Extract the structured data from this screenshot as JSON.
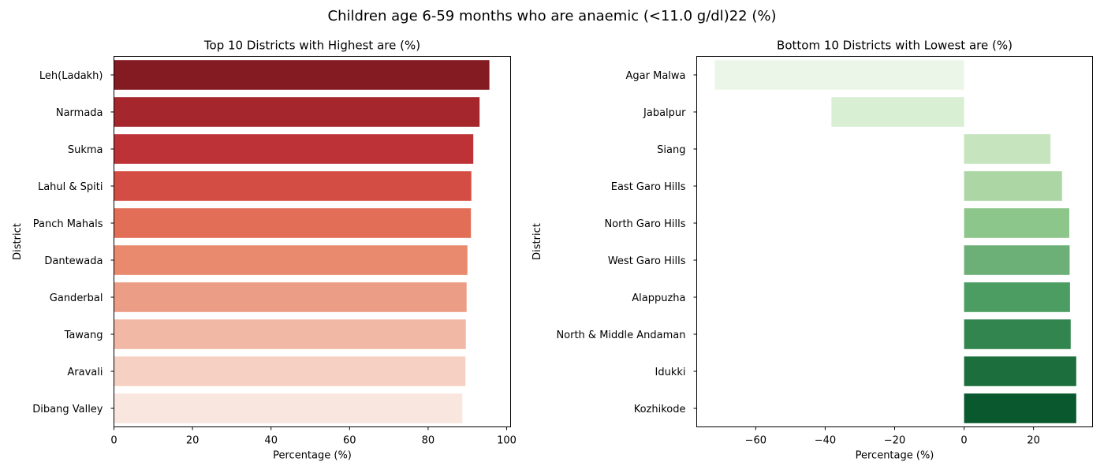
{
  "figure": {
    "suptitle": "Children age 6-59 months who are anaemic (<11.0 g/dl)22 (%)"
  },
  "chart_data": [
    {
      "type": "bar",
      "orientation": "horizontal",
      "title": "Top 10 Districts with Highest are (%)",
      "xlabel": "Percentage (%)",
      "ylabel": "District",
      "categories": [
        "Leh(Ladakh)",
        "Narmada",
        "Sukma",
        "Lahul & Spiti",
        "Panch Mahals",
        "Dantewada",
        "Ganderbal",
        "Tawang",
        "Aravali",
        "Dibang Valley"
      ],
      "values": [
        95.6,
        93.1,
        91.5,
        91.0,
        90.9,
        90.0,
        89.8,
        89.6,
        89.5,
        88.7
      ],
      "xlim": [
        0,
        101
      ],
      "xticks": [
        0,
        20,
        40,
        60,
        80,
        100
      ],
      "colors": [
        "#841a22",
        "#a5262d",
        "#bc3236",
        "#d44d44",
        "#e36e57",
        "#e9896d",
        "#ec9d86",
        "#f1b9a5",
        "#f6d1c3",
        "#f9e6de"
      ],
      "grid": false,
      "legend": "none"
    },
    {
      "type": "bar",
      "orientation": "horizontal",
      "title": "Bottom 10 Districts with Lowest are (%)",
      "xlabel": "Percentage (%)",
      "ylabel": "District",
      "categories": [
        "Agar Malwa",
        "Jabalpur",
        "Siang",
        "East Garo Hills",
        "North Garo Hills",
        "West Garo Hills",
        "Alappuzha",
        "North & Middle Andaman",
        "Idukki",
        "Kozhikode"
      ],
      "values": [
        -71.8,
        -38.2,
        24.9,
        28.2,
        30.3,
        30.4,
        30.5,
        30.7,
        32.3,
        32.3
      ],
      "xlim": [
        -77,
        37
      ],
      "xticks": [
        -60,
        -40,
        -20,
        0,
        20
      ],
      "xtick_labels": [
        "−60",
        "−40",
        "−20",
        "0",
        "20"
      ],
      "colors": [
        "#ebf6e8",
        "#d9efd3",
        "#c6e5be",
        "#acd7a5",
        "#8dc68a",
        "#6db077",
        "#4b9d61",
        "#32854f",
        "#1c6f3d",
        "#0a582d"
      ],
      "grid": false,
      "legend": "none"
    }
  ]
}
